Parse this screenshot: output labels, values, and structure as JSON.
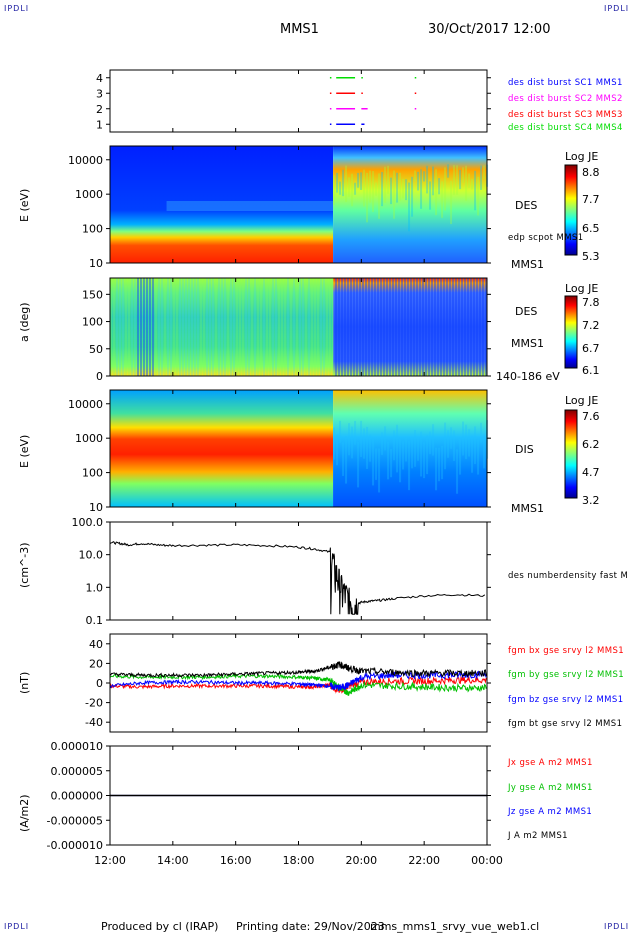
{
  "corners": {
    "tl": "IPDLI",
    "tr": "IPDLI",
    "bl": "IPDLI",
    "br": "IPDLI"
  },
  "header": {
    "mission": "MMS1",
    "datetime": "30/Oct/2017 12:00"
  },
  "footer": {
    "produced": "Produced by cl (IRAP)",
    "printed": "Printing date: 29/Nov/2023",
    "file": "mms_mms1_srvy_vue_web1.cl"
  },
  "chart_data": [
    {
      "type": "scatter",
      "id": "burst",
      "yticks": [
        "4",
        "3",
        "2",
        "1"
      ],
      "yvalues": [
        4,
        3,
        2,
        1
      ],
      "series": [
        {
          "name": "des dist burst SC1 MMS1",
          "color": "#0000ff",
          "y": 1,
          "segments": [
            [
              19.0,
              19.0
            ],
            [
              19.2,
              19.8
            ],
            [
              20.0,
              20.1
            ]
          ]
        },
        {
          "name": "des dist burst SC2 MMS2",
          "color": "#ff00ff",
          "y": 2,
          "segments": [
            [
              19.0,
              19.0
            ],
            [
              19.2,
              19.8
            ],
            [
              20.0,
              20.2
            ],
            [
              21.7,
              21.7
            ]
          ]
        },
        {
          "name": "des dist burst SC3 MMS3",
          "color": "#ff0000",
          "y": 3,
          "segments": [
            [
              19.0,
              19.0
            ],
            [
              19.2,
              19.8
            ],
            [
              20.0,
              20.0
            ],
            [
              21.7,
              21.7
            ]
          ]
        },
        {
          "name": "des dist burst SC4 MMS4",
          "color": "#00dd00",
          "y": 4,
          "segments": [
            [
              19.0,
              19.0
            ],
            [
              19.2,
              19.8
            ],
            [
              20.0,
              20.0
            ],
            [
              21.7,
              21.7
            ]
          ]
        }
      ]
    },
    {
      "type": "heatmap",
      "id": "des-energy",
      "ylabel": "E (eV)",
      "yticks": [
        "10000",
        "1000",
        "100",
        "10"
      ],
      "ylog": [
        1,
        4.4
      ],
      "label": "DES",
      "label2": "edp scpot MMS1",
      "label3": "MMS1",
      "colorbar": {
        "title": "Log JE",
        "ticks": [
          "8.8",
          "7.7",
          "6.5",
          "5.3"
        ],
        "range": [
          5.3,
          8.8
        ]
      }
    },
    {
      "type": "heatmap",
      "id": "des-pitch",
      "ylabel": "a (deg)",
      "yticks": [
        "150",
        "100",
        "50",
        "0"
      ],
      "ylim": [
        0,
        180
      ],
      "label": "DES",
      "label2": "MMS1",
      "label3": "140-186 eV",
      "colorbar": {
        "title": "Log JE",
        "ticks": [
          "7.8",
          "7.2",
          "6.7",
          "6.1"
        ],
        "range": [
          6.1,
          7.8
        ]
      }
    },
    {
      "type": "heatmap",
      "id": "dis-energy",
      "ylabel": "E (eV)",
      "yticks": [
        "10000",
        "1000",
        "100",
        "10"
      ],
      "ylog": [
        1,
        4.4
      ],
      "label": "DIS",
      "label3": "MMS1",
      "colorbar": {
        "title": "Log JE",
        "ticks": [
          "7.6",
          "6.2",
          "4.7",
          "3.2"
        ],
        "range": [
          3.2,
          7.6
        ]
      }
    },
    {
      "type": "line",
      "id": "density",
      "ylabel": "(cm^-3)",
      "yticks": [
        "100.0",
        "10.0",
        "1.0",
        "0.1"
      ],
      "ylog": [
        -1,
        2
      ],
      "series": [
        {
          "name": "des numberdensity fast M",
          "color": "#000000",
          "x": [
            12.0,
            12.3,
            12.6,
            13.0,
            13.5,
            14.0,
            15.0,
            16.0,
            17.0,
            18.0,
            18.5,
            19.0,
            19.2,
            19.4,
            19.6,
            19.8,
            20.0,
            20.3,
            20.6,
            21.0,
            22.0,
            23.0,
            24.0
          ],
          "y": [
            24,
            22,
            20,
            22,
            20,
            19,
            19.5,
            20,
            19,
            17,
            15,
            12,
            3,
            0.9,
            0.45,
            0.3,
            0.35,
            0.38,
            0.4,
            0.45,
            0.55,
            0.6,
            0.55
          ]
        }
      ]
    },
    {
      "type": "line",
      "id": "fgm",
      "ylabel": "(nT)",
      "yticks": [
        "40",
        "20",
        "0",
        "-20",
        "-40"
      ],
      "ylim": [
        -50,
        50
      ],
      "series": [
        {
          "name": "fgm bx gse srvy l2 MMS1",
          "color": "#ff0000",
          "x": [
            12,
            13,
            14,
            15,
            16,
            17,
            18,
            18.5,
            19,
            19.3,
            19.6,
            20,
            21,
            22,
            23,
            24
          ],
          "y": [
            -3,
            -4,
            -3,
            -3,
            -3,
            -3,
            -4,
            -4,
            -2,
            -8,
            -3,
            1,
            2,
            2,
            3,
            3
          ]
        },
        {
          "name": "fgm by gse srvy l2 MMS1",
          "color": "#00c000",
          "x": [
            12,
            13,
            14,
            15,
            16,
            17,
            18,
            18.5,
            19,
            19.3,
            19.6,
            20,
            21,
            22,
            23,
            24
          ],
          "y": [
            7,
            6,
            6,
            6,
            7,
            7,
            6,
            5,
            3,
            -5,
            -10,
            -2,
            -3,
            -4,
            -5,
            -5
          ]
        },
        {
          "name": "fgm bz gse srvy l2 MMS1",
          "color": "#0000ff",
          "x": [
            12,
            13,
            14,
            15,
            16,
            17,
            18,
            18.5,
            19,
            19.3,
            19.6,
            20,
            21,
            22,
            23,
            24
          ],
          "y": [
            -3,
            0,
            1,
            1,
            0,
            0,
            -1,
            -2,
            -3,
            -5,
            -2,
            6,
            8,
            8,
            8,
            9
          ]
        },
        {
          "name": "fgm bt gse srvy l2 MMS1",
          "color": "#000000",
          "x": [
            12,
            13,
            14,
            15,
            16,
            17,
            18,
            18.5,
            19,
            19.3,
            19.6,
            20,
            21,
            22,
            23,
            24
          ],
          "y": [
            9,
            8,
            8,
            8,
            9,
            10,
            11,
            12,
            16,
            19,
            15,
            12,
            11,
            10,
            10,
            10
          ]
        }
      ]
    },
    {
      "type": "line",
      "id": "current",
      "ylabel": "(A/m2)",
      "yticks": [
        "0.000010",
        "0.000005",
        "0.000000",
        "-0.000005",
        "-0.000010"
      ],
      "ylim": [
        -1e-05,
        1e-05
      ],
      "series": [
        {
          "name": "Jx gse A m2 MMS1",
          "color": "#ff0000",
          "x": [
            12,
            24
          ],
          "y": [
            0,
            0
          ]
        },
        {
          "name": "Jy gse A m2 MMS1",
          "color": "#00c000",
          "x": [
            12,
            24
          ],
          "y": [
            0,
            0
          ]
        },
        {
          "name": "Jz gse A m2 MMS1",
          "color": "#0000ff",
          "x": [
            12,
            24
          ],
          "y": [
            0,
            0
          ]
        },
        {
          "name": "J A m2 MMS1",
          "color": "#000000",
          "x": [
            12,
            24
          ],
          "y": [
            0,
            0
          ]
        }
      ]
    }
  ],
  "xaxis": {
    "ticks": [
      "12:00",
      "14:00",
      "16:00",
      "18:00",
      "20:00",
      "22:00",
      "00:00"
    ],
    "range": [
      12,
      24
    ]
  }
}
